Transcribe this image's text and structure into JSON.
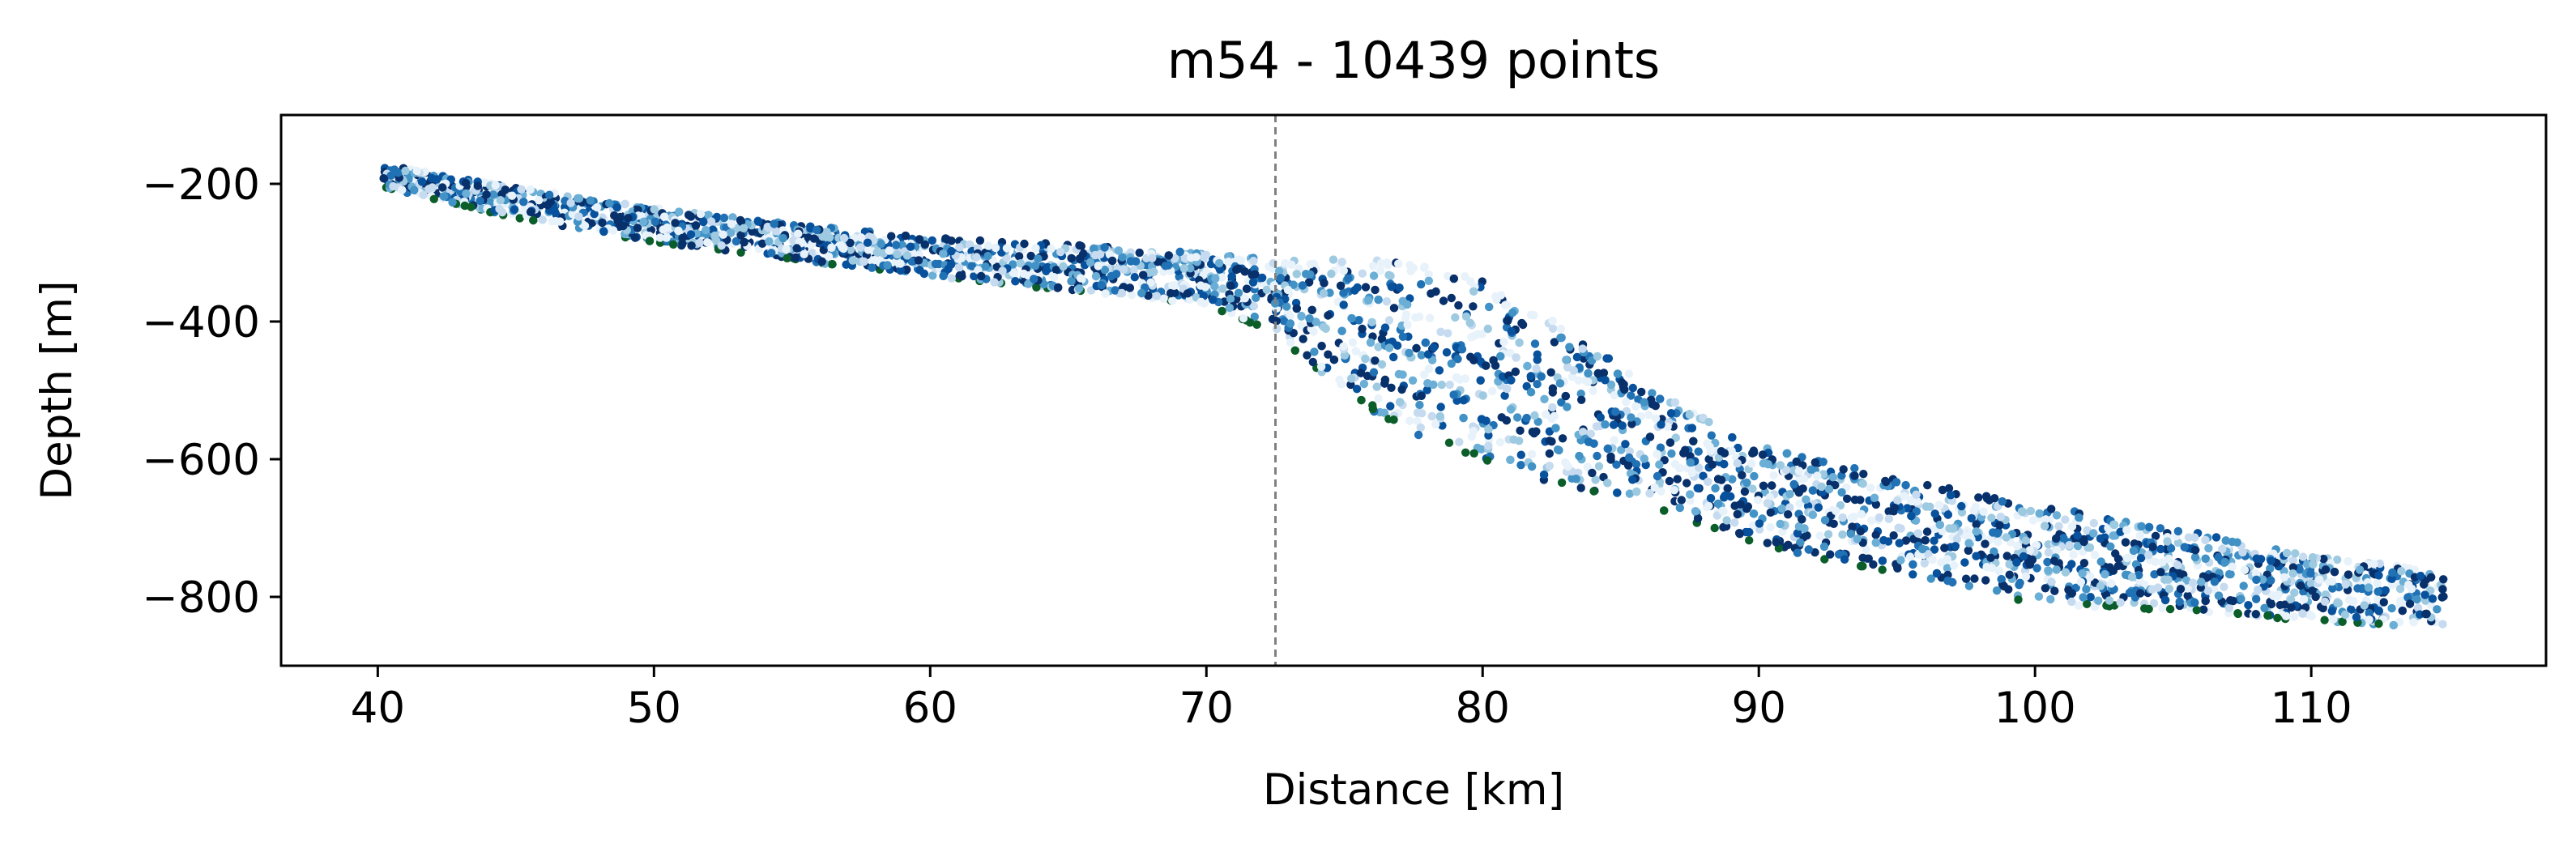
{
  "chart_data": {
    "type": "scatter",
    "title": "m54 - 10439 points",
    "xlabel": "Distance [km]",
    "ylabel": "Depth [m]",
    "xlim": [
      36.5,
      118.5
    ],
    "ylim": [
      -900,
      -100
    ],
    "xticks": [
      40,
      50,
      60,
      70,
      80,
      90,
      100,
      110
    ],
    "xtick_labels": [
      "40",
      "50",
      "60",
      "70",
      "80",
      "90",
      "100",
      "110"
    ],
    "yticks": [
      -200,
      -400,
      -600,
      -800
    ],
    "ytick_labels": [
      "−200",
      "−400",
      "−600",
      "−800"
    ],
    "grid": false,
    "vline": {
      "x": 72.5,
      "style": "dashed",
      "color": "#808080"
    },
    "point_colors": [
      "#08306b",
      "#08519c",
      "#2171b5",
      "#4292c6",
      "#6baed6",
      "#9ecae1",
      "#c6dbef",
      "#e8f2fa",
      "#0b5e2a"
    ],
    "band_outline": {
      "x": [
        40.2,
        45,
        50,
        55,
        60,
        65,
        70,
        72.5,
        75,
        77.5,
        80,
        82.5,
        85,
        87.5,
        90,
        95,
        100,
        105,
        110,
        114.8
      ],
      "top": [
        -172,
        -205,
        -235,
        -258,
        -278,
        -288,
        -300,
        -310,
        -308,
        -308,
        -340,
        -395,
        -465,
        -530,
        -580,
        -625,
        -665,
        -700,
        -740,
        -760
      ],
      "bottom": [
        -205,
        -250,
        -285,
        -310,
        -335,
        -355,
        -375,
        -420,
        -505,
        -565,
        -600,
        -635,
        -660,
        -690,
        -725,
        -770,
        -810,
        -820,
        -835,
        -845
      ]
    }
  }
}
